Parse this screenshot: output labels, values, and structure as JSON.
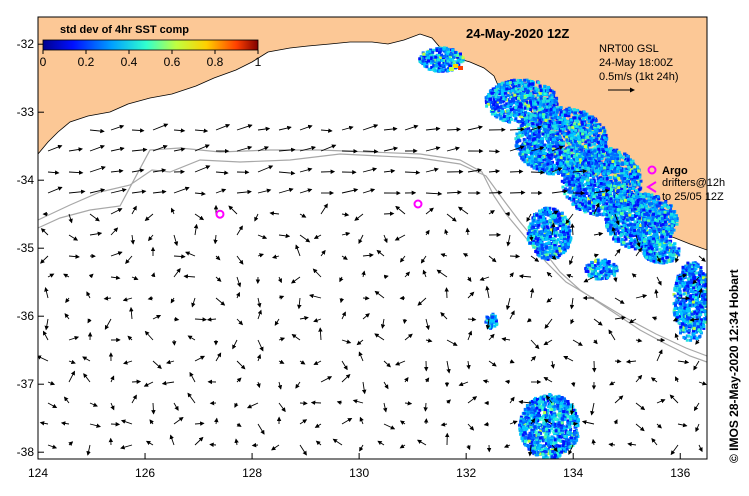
{
  "title": "24-May-2020 12Z",
  "colorbar": {
    "title": "std dev of 4hr SST comp",
    "ticks": [
      "0",
      "0.2",
      "0.4",
      "0.6",
      "0.8",
      "1"
    ],
    "range": [
      0,
      1
    ],
    "colors": [
      "#00008f",
      "#0010ff",
      "#00a0ff",
      "#30ffcf",
      "#c0ff40",
      "#ffd000",
      "#ff4000",
      "#800000"
    ]
  },
  "current_info": {
    "line1": "NRT00 GSL",
    "line2": "24-May 18:00Z",
    "line3": "0.5m/s (1kt 24h)"
  },
  "legend": {
    "argo_label": "Argo",
    "drifter_line1": "drifters@12h",
    "drifter_line2": "to 25/05 12Z",
    "argo_color": "#ff00ff",
    "drifter_color": "#ff00ff"
  },
  "credit": "© IMOS 28-May-2020 12:34 Hobart",
  "axes": {
    "lon_ticks": [
      "124",
      "126",
      "128",
      "130",
      "132",
      "134",
      "136"
    ],
    "lat_ticks": [
      "-32",
      "-33",
      "-34",
      "-35",
      "-36",
      "-37",
      "-38"
    ],
    "lon_range": [
      124,
      136.5
    ],
    "lat_range": [
      -31.6,
      -38.1
    ]
  },
  "argo_floats": [
    {
      "lon": 127.4,
      "lat": -34.5
    },
    {
      "lon": 131.1,
      "lat": -34.35
    }
  ],
  "colors": {
    "land": "#fcc896",
    "ocean": "#ffffff",
    "shelf_line": "#a8a8a8"
  }
}
